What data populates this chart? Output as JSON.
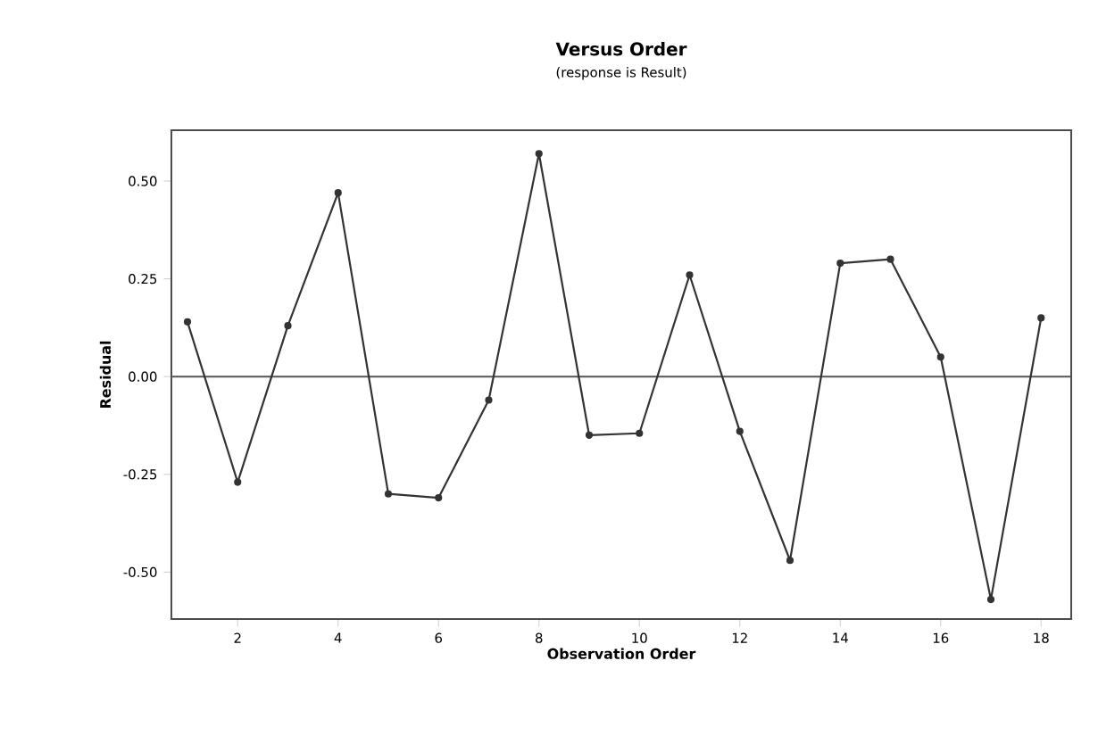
{
  "chart_data": {
    "type": "line",
    "title": "Versus Order",
    "subtitle": "(response is Result)",
    "xlabel": "Observation Order",
    "ylabel": "Residual",
    "x": [
      1,
      2,
      3,
      4,
      5,
      6,
      7,
      8,
      9,
      10,
      11,
      12,
      13,
      14,
      15,
      16,
      17,
      18
    ],
    "series": [
      {
        "color": "#333333",
        "values": [
          0.14,
          -0.27,
          0.13,
          0.47,
          -0.3,
          -0.31,
          -0.06,
          0.57,
          -0.15,
          -0.145,
          0.26,
          -0.14,
          -0.47,
          0.29,
          0.3,
          0.05,
          -0.57,
          0.15
        ]
      }
    ],
    "xlim": [
      0.68,
      18.6
    ],
    "ylim": [
      -0.62,
      0.63
    ],
    "xticks": [
      2,
      4,
      6,
      8,
      10,
      12,
      14,
      16,
      18
    ],
    "yticks": [
      {
        "value": -0.5,
        "label": "-0.50"
      },
      {
        "value": -0.25,
        "label": "-0.25"
      },
      {
        "value": 0,
        "label": "0.00"
      },
      {
        "value": 0.25,
        "label": "0.25"
      },
      {
        "value": 0.5,
        "label": "0.50"
      }
    ],
    "ref_lines": [
      {
        "axis": "y",
        "value": 0,
        "color": "#555555"
      }
    ],
    "marker": "circle",
    "line_style": "solid"
  }
}
